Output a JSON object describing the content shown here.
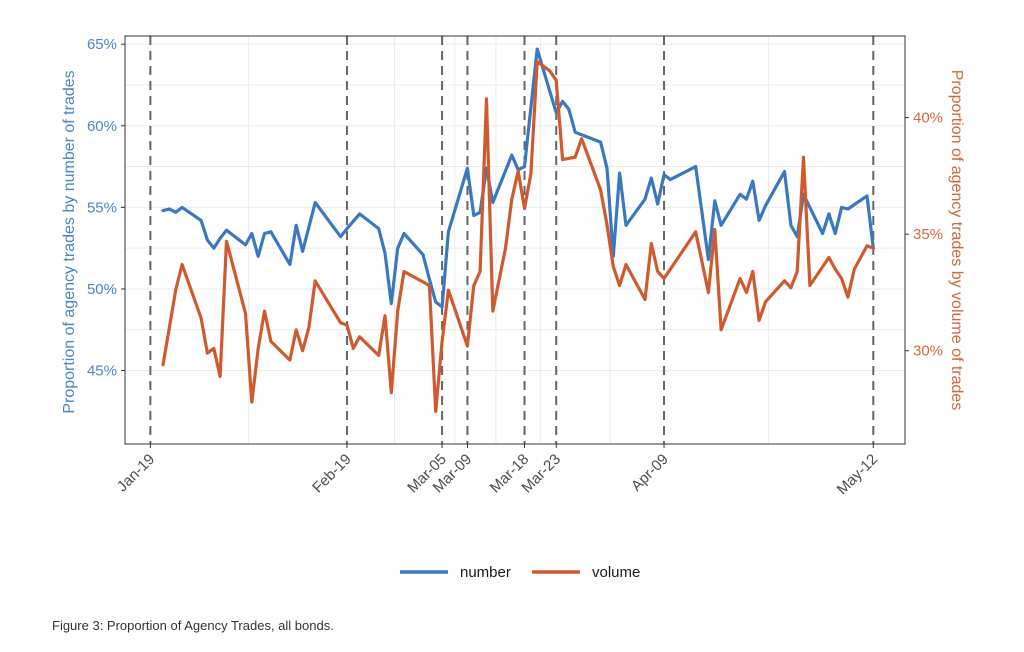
{
  "colors": {
    "number": "#3a78bf",
    "volume": "#cf5a30",
    "left_axis_text": "#4a86c8",
    "right_axis_text": "#d2693a",
    "grid": "#ebebeb",
    "vline": "#666666",
    "frame": "#333333"
  },
  "chart_data": {
    "type": "line",
    "xlabel": "",
    "x_ticks": [
      {
        "date": "2020-01-19",
        "label": "Jan-19"
      },
      {
        "date": "2020-02-19",
        "label": "Feb-19"
      },
      {
        "date": "2020-03-05",
        "label": "Mar-05"
      },
      {
        "date": "2020-03-09",
        "label": "Mar-09"
      },
      {
        "date": "2020-03-18",
        "label": "Mar-18"
      },
      {
        "date": "2020-03-23",
        "label": "Mar-23"
      },
      {
        "date": "2020-04-09",
        "label": "Apr-09"
      },
      {
        "date": "2020-05-12",
        "label": "May-12"
      }
    ],
    "xlim": [
      "2020-01-15",
      "2020-05-17"
    ],
    "vertical_dashed_lines": [
      "2020-01-19",
      "2020-02-19",
      "2020-03-05",
      "2020-03-09",
      "2020-03-18",
      "2020-03-23",
      "2020-04-09",
      "2020-05-12"
    ],
    "y_left": {
      "label": "Proportion of agency trades by number of trades",
      "ticks": [
        45,
        50,
        55,
        60,
        65
      ],
      "tick_labels": [
        "45%",
        "50%",
        "55%",
        "60%",
        "65%"
      ],
      "ylim": [
        40.5,
        65.5
      ]
    },
    "y_right": {
      "label": "Proportion of agency trades by volume of trades",
      "ticks": [
        30,
        35,
        40
      ],
      "tick_labels": [
        "30%",
        "35%",
        "40%"
      ],
      "ylim": [
        26.0,
        43.5
      ]
    },
    "legend": {
      "position": "bottom",
      "entries": [
        "number",
        "volume"
      ]
    },
    "series": [
      {
        "name": "number",
        "axis": "left",
        "points": [
          [
            "2020-01-21",
            54.8
          ],
          [
            "2020-01-22",
            54.9
          ],
          [
            "2020-01-23",
            54.7
          ],
          [
            "2020-01-24",
            55.0
          ],
          [
            "2020-01-27",
            54.2
          ],
          [
            "2020-01-28",
            53.0
          ],
          [
            "2020-01-29",
            52.5
          ],
          [
            "2020-01-30",
            53.1
          ],
          [
            "2020-01-31",
            53.6
          ],
          [
            "2020-02-03",
            52.7
          ],
          [
            "2020-02-04",
            53.4
          ],
          [
            "2020-02-05",
            52.0
          ],
          [
            "2020-02-06",
            53.4
          ],
          [
            "2020-02-07",
            53.5
          ],
          [
            "2020-02-10",
            51.5
          ],
          [
            "2020-02-11",
            53.9
          ],
          [
            "2020-02-12",
            52.3
          ],
          [
            "2020-02-14",
            55.3
          ],
          [
            "2020-02-18",
            53.2
          ],
          [
            "2020-02-19",
            53.7
          ],
          [
            "2020-02-21",
            54.6
          ],
          [
            "2020-02-24",
            53.7
          ],
          [
            "2020-02-25",
            52.2
          ],
          [
            "2020-02-26",
            49.1
          ],
          [
            "2020-02-27",
            52.5
          ],
          [
            "2020-02-28",
            53.4
          ],
          [
            "2020-03-02",
            52.1
          ],
          [
            "2020-03-03",
            50.6
          ],
          [
            "2020-03-04",
            49.2
          ],
          [
            "2020-03-05",
            48.9
          ],
          [
            "2020-03-06",
            53.5
          ],
          [
            "2020-03-09",
            57.4
          ],
          [
            "2020-03-10",
            54.5
          ],
          [
            "2020-03-11",
            54.7
          ],
          [
            "2020-03-12",
            57.4
          ],
          [
            "2020-03-13",
            55.3
          ],
          [
            "2020-03-16",
            58.2
          ],
          [
            "2020-03-17",
            57.3
          ],
          [
            "2020-03-18",
            57.5
          ],
          [
            "2020-03-20",
            64.7
          ],
          [
            "2020-03-23",
            60.8
          ],
          [
            "2020-03-24",
            61.5
          ],
          [
            "2020-03-25",
            61.0
          ],
          [
            "2020-03-26",
            59.6
          ],
          [
            "2020-03-30",
            59.0
          ],
          [
            "2020-03-31",
            57.4
          ],
          [
            "2020-04-01",
            52.0
          ],
          [
            "2020-04-02",
            57.1
          ],
          [
            "2020-04-03",
            53.9
          ],
          [
            "2020-04-06",
            55.5
          ],
          [
            "2020-04-07",
            56.8
          ],
          [
            "2020-04-08",
            55.2
          ],
          [
            "2020-04-09",
            57.0
          ],
          [
            "2020-04-10",
            56.7
          ],
          [
            "2020-04-14",
            57.5
          ],
          [
            "2020-04-16",
            51.8
          ],
          [
            "2020-04-17",
            55.4
          ],
          [
            "2020-04-18",
            53.9
          ],
          [
            "2020-04-21",
            55.8
          ],
          [
            "2020-04-22",
            55.5
          ],
          [
            "2020-04-23",
            56.6
          ],
          [
            "2020-04-24",
            54.2
          ],
          [
            "2020-04-25",
            55.1
          ],
          [
            "2020-04-28",
            57.2
          ],
          [
            "2020-04-29",
            53.9
          ],
          [
            "2020-04-30",
            53.2
          ],
          [
            "2020-05-01",
            55.8
          ],
          [
            "2020-05-04",
            53.4
          ],
          [
            "2020-05-05",
            54.6
          ],
          [
            "2020-05-06",
            53.4
          ],
          [
            "2020-05-07",
            55.0
          ],
          [
            "2020-05-08",
            54.9
          ],
          [
            "2020-05-11",
            55.7
          ],
          [
            "2020-05-12",
            52.5
          ]
        ]
      },
      {
        "name": "volume",
        "axis": "right",
        "points": [
          [
            "2020-01-21",
            29.4
          ],
          [
            "2020-01-22",
            31.0
          ],
          [
            "2020-01-23",
            32.6
          ],
          [
            "2020-01-24",
            33.7
          ],
          [
            "2020-01-27",
            31.4
          ],
          [
            "2020-01-28",
            29.9
          ],
          [
            "2020-01-29",
            30.1
          ],
          [
            "2020-01-30",
            28.9
          ],
          [
            "2020-01-31",
            34.7
          ],
          [
            "2020-02-03",
            31.6
          ],
          [
            "2020-02-04",
            27.8
          ],
          [
            "2020-02-05",
            30.1
          ],
          [
            "2020-02-06",
            31.7
          ],
          [
            "2020-02-07",
            30.4
          ],
          [
            "2020-02-10",
            29.6
          ],
          [
            "2020-02-11",
            30.9
          ],
          [
            "2020-02-12",
            30.0
          ],
          [
            "2020-02-13",
            31.0
          ],
          [
            "2020-02-14",
            33.0
          ],
          [
            "2020-02-18",
            31.2
          ],
          [
            "2020-02-19",
            31.1
          ],
          [
            "2020-02-20",
            30.1
          ],
          [
            "2020-02-21",
            30.6
          ],
          [
            "2020-02-24",
            29.8
          ],
          [
            "2020-02-25",
            31.5
          ],
          [
            "2020-02-26",
            28.2
          ],
          [
            "2020-02-27",
            31.7
          ],
          [
            "2020-02-28",
            33.4
          ],
          [
            "2020-03-03",
            32.8
          ],
          [
            "2020-03-04",
            27.4
          ],
          [
            "2020-03-05",
            30.4
          ],
          [
            "2020-03-06",
            32.6
          ],
          [
            "2020-03-09",
            30.2
          ],
          [
            "2020-03-10",
            32.8
          ],
          [
            "2020-03-11",
            33.4
          ],
          [
            "2020-03-12",
            40.8
          ],
          [
            "2020-03-13",
            31.7
          ],
          [
            "2020-03-15",
            34.4
          ],
          [
            "2020-03-16",
            36.5
          ],
          [
            "2020-03-17",
            37.7
          ],
          [
            "2020-03-18",
            36.1
          ],
          [
            "2020-03-19",
            37.6
          ],
          [
            "2020-03-20",
            42.4
          ],
          [
            "2020-03-22",
            42.0
          ],
          [
            "2020-03-23",
            41.6
          ],
          [
            "2020-03-24",
            38.2
          ],
          [
            "2020-03-26",
            38.3
          ],
          [
            "2020-03-27",
            39.1
          ],
          [
            "2020-03-30",
            36.9
          ],
          [
            "2020-03-31",
            35.4
          ],
          [
            "2020-04-01",
            33.6
          ],
          [
            "2020-04-02",
            32.8
          ],
          [
            "2020-04-03",
            33.7
          ],
          [
            "2020-04-06",
            32.2
          ],
          [
            "2020-04-07",
            34.6
          ],
          [
            "2020-04-08",
            33.4
          ],
          [
            "2020-04-09",
            33.1
          ],
          [
            "2020-04-14",
            35.1
          ],
          [
            "2020-04-16",
            32.5
          ],
          [
            "2020-04-17",
            35.2
          ],
          [
            "2020-04-18",
            30.9
          ],
          [
            "2020-04-21",
            33.1
          ],
          [
            "2020-04-22",
            32.5
          ],
          [
            "2020-04-23",
            33.4
          ],
          [
            "2020-04-24",
            31.3
          ],
          [
            "2020-04-25",
            32.1
          ],
          [
            "2020-04-28",
            33.0
          ],
          [
            "2020-04-29",
            32.7
          ],
          [
            "2020-04-30",
            33.4
          ],
          [
            "2020-05-01",
            38.3
          ],
          [
            "2020-05-02",
            32.8
          ],
          [
            "2020-05-05",
            34.0
          ],
          [
            "2020-05-06",
            33.5
          ],
          [
            "2020-05-07",
            33.1
          ],
          [
            "2020-05-08",
            32.3
          ],
          [
            "2020-05-09",
            33.5
          ],
          [
            "2020-05-11",
            34.5
          ],
          [
            "2020-05-12",
            34.4
          ]
        ]
      }
    ]
  },
  "caption": "Figure 3: Proportion of Agency Trades, all bonds."
}
